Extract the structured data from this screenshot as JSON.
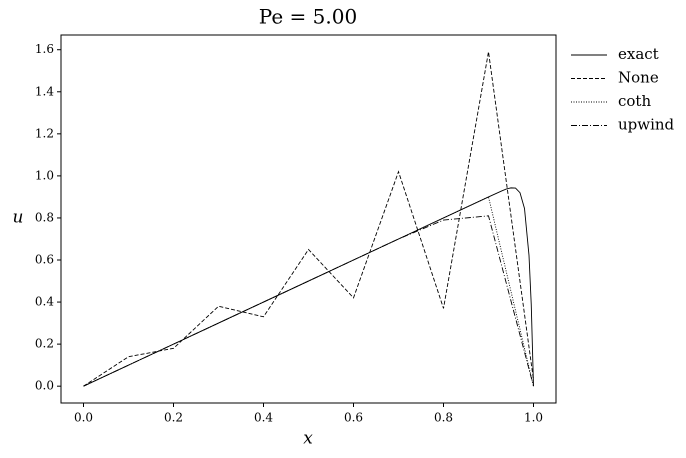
{
  "chart_data": {
    "type": "line",
    "title": "Pe = 5.00",
    "x_label": "x",
    "y_label": "u",
    "xlim": [
      -0.05,
      1.05
    ],
    "ylim": [
      -0.08,
      1.67
    ],
    "xticks": [
      {
        "value": 0,
        "label": "0.0"
      },
      {
        "value": 0.2,
        "label": "0.2"
      },
      {
        "value": 0.4,
        "label": "0.4"
      },
      {
        "value": 0.6,
        "label": "0.6"
      },
      {
        "value": 0.8,
        "label": "0.8"
      },
      {
        "value": 1,
        "label": "1.0"
      }
    ],
    "yticks": [
      {
        "value": 0,
        "label": "0.0"
      },
      {
        "value": 0.2,
        "label": "0.2"
      },
      {
        "value": 0.4,
        "label": "0.4"
      },
      {
        "value": 0.6,
        "label": "0.6"
      },
      {
        "value": 0.8,
        "label": "0.8"
      },
      {
        "value": 1,
        "label": "1.0"
      },
      {
        "value": 1.2,
        "label": "1.2"
      },
      {
        "value": 1.4,
        "label": "1.4"
      },
      {
        "value": 1.6,
        "label": "1.6"
      }
    ],
    "legend": "outside-upper-right",
    "series": [
      {
        "name": "exact",
        "color": "#000000",
        "linestyle": "solid",
        "x": [
          0,
          0.1,
          0.2,
          0.3,
          0.4,
          0.5,
          0.6,
          0.7,
          0.8,
          0.9,
          0.93,
          0.94,
          0.95,
          0.96,
          0.97,
          0.98,
          0.99,
          0.995,
          1.0
        ],
        "values": [
          0,
          0.1,
          0.2,
          0.3,
          0.4,
          0.5,
          0.6,
          0.7,
          0.8,
          0.9,
          0.929,
          0.938,
          0.943,
          0.942,
          0.92,
          0.845,
          0.622,
          0.388,
          0
        ]
      },
      {
        "name": "None",
        "color": "#000000",
        "linestyle": "dashed",
        "x": [
          0,
          0.1,
          0.2,
          0.3,
          0.4,
          0.5,
          0.6,
          0.7,
          0.8,
          0.9,
          1.0
        ],
        "values": [
          0,
          0.14,
          0.18,
          0.38,
          0.33,
          0.65,
          0.42,
          1.02,
          0.37,
          1.59,
          0.03
        ]
      },
      {
        "name": "coth",
        "color": "#000000",
        "linestyle": "dotted",
        "x": [
          0,
          0.1,
          0.2,
          0.3,
          0.4,
          0.5,
          0.6,
          0.7,
          0.8,
          0.9,
          1.0
        ],
        "values": [
          0,
          0.1,
          0.2,
          0.3,
          0.4,
          0.5,
          0.6,
          0.7,
          0.8,
          0.9,
          0
        ]
      },
      {
        "name": "upwind",
        "color": "#000000",
        "linestyle": "dashdot",
        "x": [
          0,
          0.1,
          0.2,
          0.3,
          0.4,
          0.5,
          0.6,
          0.7,
          0.8,
          0.9,
          1.0
        ],
        "values": [
          0,
          0.1,
          0.2,
          0.3,
          0.4,
          0.5,
          0.6,
          0.7,
          0.79,
          0.81,
          0
        ]
      }
    ]
  }
}
